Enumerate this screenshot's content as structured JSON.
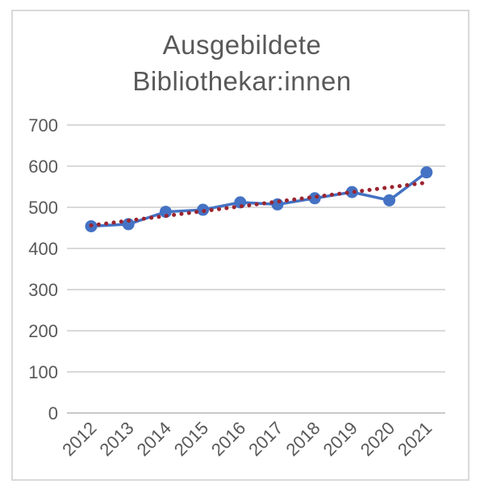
{
  "chart_data": {
    "type": "line",
    "title": "Ausgebildete Bibliothekar:innen",
    "title_lines": [
      "Ausgebildete",
      "Bibliothekar:innen"
    ],
    "categories": [
      "2012",
      "2013",
      "2014",
      "2015",
      "2016",
      "2017",
      "2018",
      "2019",
      "2020",
      "2021"
    ],
    "series": [
      {
        "name": "Ausgebildete Bibliothekar:innen",
        "values": [
          454,
          459,
          489,
          494,
          512,
          507,
          522,
          537,
          517,
          585
        ],
        "color": "#4472C4",
        "marker": "circle"
      }
    ],
    "trendline": {
      "type": "linear",
      "style": "dotted",
      "start_value": 456,
      "end_value": 560,
      "color": "#9B2430"
    },
    "xlabel": "",
    "ylabel": "",
    "ylim": [
      0,
      700
    ],
    "yticks": [
      0,
      100,
      200,
      300,
      400,
      500,
      600,
      700
    ],
    "grid": true,
    "legend": "none",
    "xtick_rotation": 45,
    "colors": {
      "gridline": "#D9D9D9",
      "axis_line": "#C9C9C9",
      "axis_label": "#595959",
      "title": "#595959",
      "frame_border": "#D9D9D9",
      "background": "#FFFFFF"
    }
  }
}
